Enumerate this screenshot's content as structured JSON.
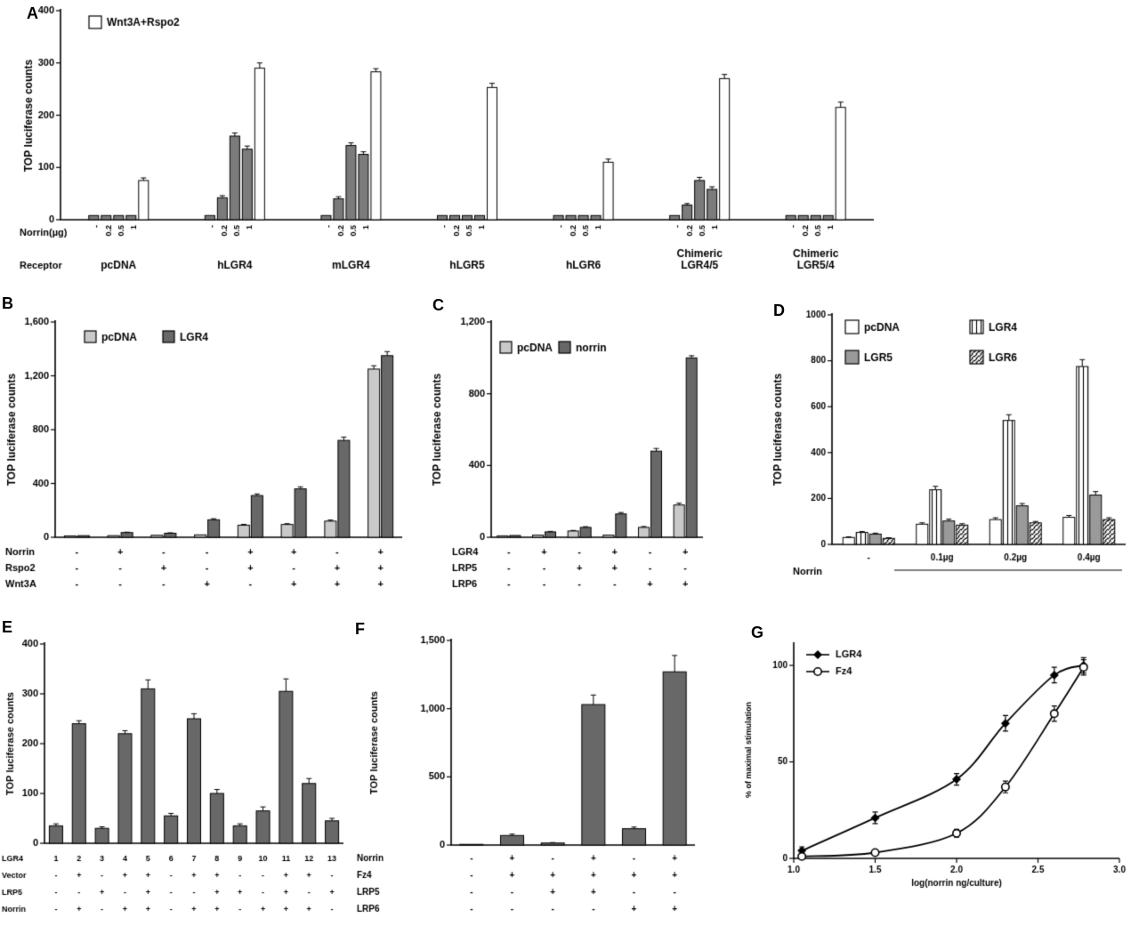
{
  "figure": {
    "background": "#ffffff",
    "panels": {
      "A": {
        "letter": "A"
      },
      "B": {
        "letter": "B"
      },
      "C": {
        "letter": "C"
      },
      "D": {
        "letter": "D"
      },
      "E": {
        "letter": "E"
      },
      "F": {
        "letter": "F"
      },
      "G": {
        "letter": "G"
      }
    }
  },
  "colors": {
    "bar_dark": "#686868",
    "bar_light": "#c9c9c9",
    "bar_mid": "#7b7b7b",
    "axis": "#000000"
  },
  "chart_data": [
    {
      "id": "A",
      "type": "bar",
      "ylabel": "TOP luciferase counts",
      "ylim": [
        0,
        400
      ],
      "yticks": [
        {
          "v": 0,
          "t": "0"
        },
        {
          "v": 100,
          "t": "100"
        },
        {
          "v": 200,
          "t": "200"
        },
        {
          "v": 300,
          "t": "300"
        },
        {
          "v": 400,
          "t": "400"
        }
      ],
      "legend": [
        {
          "label": "Wnt3A+Rspo2",
          "fill": "white"
        }
      ],
      "bar_fill_default": "#7b7b7b",
      "dose_labels": [
        "-",
        "0.2",
        "0.5",
        "1",
        ""
      ],
      "row_captions": [
        "Norrin(µg)",
        "Receptor"
      ],
      "groups": [
        {
          "label": "pcDNA",
          "values": [
            8,
            8,
            8,
            8,
            75
          ],
          "errors": [
            0,
            0,
            0,
            0,
            5
          ],
          "fills": [
            null,
            null,
            null,
            null,
            "white"
          ]
        },
        {
          "label": "hLGR4",
          "values": [
            8,
            42,
            160,
            135,
            290
          ],
          "errors": [
            0,
            4,
            6,
            6,
            10
          ],
          "fills": [
            null,
            null,
            null,
            null,
            "white"
          ]
        },
        {
          "label": "mLGR4",
          "values": [
            8,
            40,
            142,
            125,
            283
          ],
          "errors": [
            0,
            4,
            5,
            5,
            6
          ],
          "fills": [
            null,
            null,
            null,
            null,
            "white"
          ]
        },
        {
          "label": "hLGR5",
          "values": [
            8,
            8,
            8,
            8,
            253
          ],
          "errors": [
            0,
            0,
            0,
            0,
            8
          ],
          "fills": [
            null,
            null,
            null,
            null,
            "white"
          ]
        },
        {
          "label": "hLGR6",
          "values": [
            8,
            8,
            8,
            8,
            110
          ],
          "errors": [
            0,
            0,
            0,
            0,
            6
          ],
          "fills": [
            null,
            null,
            null,
            null,
            "white"
          ]
        },
        {
          "label": "Chimeric\nLGR4/5",
          "values": [
            8,
            28,
            75,
            58,
            270
          ],
          "errors": [
            0,
            3,
            6,
            5,
            8
          ],
          "fills": [
            null,
            null,
            null,
            null,
            "white"
          ]
        },
        {
          "label": "Chimeric\nLGR5/4",
          "values": [
            8,
            8,
            8,
            8,
            215
          ],
          "errors": [
            0,
            0,
            0,
            0,
            10
          ],
          "fills": [
            null,
            null,
            null,
            null,
            "white"
          ]
        }
      ]
    },
    {
      "id": "B",
      "type": "bar",
      "ylabel": "TOP luciferase counts",
      "ylim": [
        0,
        1600
      ],
      "yticks": [
        {
          "v": 0,
          "t": "0"
        },
        {
          "v": 400,
          "t": "400"
        },
        {
          "v": 800,
          "t": "800"
        },
        {
          "v": 1200,
          "t": "1,200"
        },
        {
          "v": 1600,
          "t": "1,600"
        }
      ],
      "legend": [
        {
          "label": "pcDNA",
          "fill": "#c9c9c9"
        },
        {
          "label": "LGR4",
          "fill": "#686868"
        }
      ],
      "series": [
        {
          "name": "pcDNA",
          "fill": "#c9c9c9",
          "values": [
            10,
            12,
            15,
            18,
            90,
            95,
            120,
            1250
          ],
          "errors": [
            0,
            0,
            0,
            0,
            6,
            6,
            8,
            25
          ]
        },
        {
          "name": "LGR4",
          "fill": "#686868",
          "values": [
            12,
            35,
            30,
            130,
            310,
            360,
            720,
            1350
          ],
          "errors": [
            0,
            3,
            3,
            8,
            12,
            15,
            25,
            30
          ]
        }
      ],
      "bottom_rows": [
        {
          "label": "Norrin",
          "cells": [
            "-",
            "+",
            "-",
            "-",
            "+",
            "+",
            "-",
            "+"
          ]
        },
        {
          "label": "Rspo2",
          "cells": [
            "-",
            "-",
            "+",
            "-",
            "+",
            "-",
            "+",
            "+"
          ]
        },
        {
          "label": "Wnt3A",
          "cells": [
            "-",
            "-",
            "-",
            "+",
            "-",
            "+",
            "+",
            "+"
          ]
        }
      ]
    },
    {
      "id": "C",
      "type": "bar",
      "ylabel": "TOP luciferase counts",
      "ylim": [
        0,
        1200
      ],
      "yticks": [
        {
          "v": 0,
          "t": "0"
        },
        {
          "v": 400,
          "t": "400"
        },
        {
          "v": 800,
          "t": "800"
        },
        {
          "v": 1200,
          "t": "1,200"
        }
      ],
      "legend": [
        {
          "label": "pcDNA",
          "fill": "#c9c9c9"
        },
        {
          "label": "norrin",
          "fill": "#686868"
        }
      ],
      "series": [
        {
          "name": "pcDNA",
          "fill": "#c9c9c9",
          "values": [
            8,
            12,
            35,
            12,
            55,
            180
          ],
          "errors": [
            0,
            0,
            3,
            0,
            5,
            10
          ]
        },
        {
          "name": "norrin",
          "fill": "#686868",
          "values": [
            10,
            30,
            55,
            130,
            480,
            1000
          ],
          "errors": [
            0,
            3,
            4,
            8,
            15,
            12
          ]
        }
      ],
      "bottom_rows": [
        {
          "label": "LGR4",
          "cells": [
            "-",
            "+",
            "-",
            "+",
            "-",
            "+"
          ]
        },
        {
          "label": "LRP5",
          "cells": [
            "-",
            "-",
            "+",
            "+",
            "-",
            "-"
          ]
        },
        {
          "label": "LRP6",
          "cells": [
            "-",
            "-",
            "-",
            "-",
            "+",
            "+"
          ]
        }
      ]
    },
    {
      "id": "D",
      "type": "bar",
      "ylabel": "TOP luciferase counts",
      "ylim": [
        0,
        1000
      ],
      "yticks": [
        {
          "v": 0,
          "t": "0"
        },
        {
          "v": 200,
          "t": "200"
        },
        {
          "v": 400,
          "t": "400"
        },
        {
          "v": 600,
          "t": "600"
        },
        {
          "v": 800,
          "t": "800"
        },
        {
          "v": 1000,
          "t": "1000"
        }
      ],
      "legend": [
        {
          "label": "pcDNA",
          "fill": "white"
        },
        {
          "label": "LGR4",
          "fill": "hatch-vert"
        },
        {
          "label": "LGR5",
          "fill": "#9a9a9a"
        },
        {
          "label": "LGR6",
          "fill": "hatch-diag"
        }
      ],
      "categories": [
        "-",
        "0.1µg",
        "0.2µg",
        "0.4µg"
      ],
      "xlabel": "Norrin",
      "series": [
        {
          "name": "pcDNA",
          "fill": "white",
          "values": [
            30,
            88,
            108,
            118
          ],
          "errors": [
            3,
            6,
            8,
            8
          ]
        },
        {
          "name": "LGR4",
          "fill": "hatch-vert",
          "values": [
            52,
            238,
            540,
            775
          ],
          "errors": [
            4,
            15,
            25,
            30
          ]
        },
        {
          "name": "LGR5",
          "fill": "#9a9a9a",
          "values": [
            45,
            102,
            168,
            215
          ],
          "errors": [
            4,
            8,
            10,
            15
          ]
        },
        {
          "name": "LGR6",
          "fill": "hatch-diag",
          "values": [
            26,
            84,
            94,
            108
          ],
          "errors": [
            3,
            6,
            6,
            8
          ]
        }
      ]
    },
    {
      "id": "E",
      "type": "bar",
      "ylabel": "TOP luciferase counts",
      "ylim": [
        0,
        400
      ],
      "yticks": [
        {
          "v": 0,
          "t": "0"
        },
        {
          "v": 100,
          "t": "100"
        },
        {
          "v": 200,
          "t": "200"
        },
        {
          "v": 300,
          "t": "300"
        },
        {
          "v": 400,
          "t": "400"
        }
      ],
      "bar_fill_default": "#686868",
      "values": [
        35,
        240,
        30,
        220,
        310,
        55,
        250,
        100,
        35,
        65,
        305,
        120,
        45
      ],
      "errors": [
        4,
        6,
        3,
        6,
        18,
        5,
        10,
        8,
        4,
        8,
        25,
        10,
        5
      ],
      "bottom_rows": [
        {
          "label": "LGR4",
          "cells": [
            "1",
            "2",
            "3",
            "4",
            "5",
            "6",
            "7",
            "8",
            "9",
            "10",
            "11",
            "12",
            "13"
          ]
        },
        {
          "label": "Vector",
          "cells": [
            "-",
            "+",
            "-",
            "+",
            "+",
            "-",
            "+",
            "+",
            "-",
            "-",
            "+",
            "+",
            "-"
          ]
        },
        {
          "label": "LRP5",
          "cells": [
            "-",
            "-",
            "+",
            "-",
            "+",
            "-",
            "-",
            "+",
            "+",
            "-",
            "+",
            "-",
            "+"
          ]
        },
        {
          "label": "Norrin",
          "cells": [
            "-",
            "+",
            "-",
            "+",
            "+",
            "-",
            "+",
            "+",
            "-",
            "+",
            "+",
            "+",
            "-"
          ]
        }
      ]
    },
    {
      "id": "F",
      "type": "bar",
      "ylabel": "TOP luciferase counts",
      "ylim": [
        0,
        1500
      ],
      "yticks": [
        {
          "v": 0,
          "t": "0"
        },
        {
          "v": 500,
          "t": "500"
        },
        {
          "v": 1000,
          "t": "1,000"
        },
        {
          "v": 1500,
          "t": "1,500"
        }
      ],
      "bar_fill_default": "#686868",
      "values": [
        5,
        70,
        15,
        1030,
        120,
        1270
      ],
      "errors": [
        0,
        10,
        3,
        70,
        12,
        120
      ],
      "bottom_rows": [
        {
          "label": "Norrin",
          "cells": [
            "-",
            "+",
            "-",
            "+",
            "-",
            "+"
          ]
        },
        {
          "label": "Fz4",
          "cells": [
            "-",
            "+",
            "+",
            "+",
            "+",
            "+"
          ]
        },
        {
          "label": "LRP5",
          "cells": [
            "-",
            "-",
            "+",
            "+",
            "-",
            "-"
          ]
        },
        {
          "label": "LRP6",
          "cells": [
            "-",
            "-",
            "-",
            "-",
            "+",
            "+"
          ]
        }
      ]
    },
    {
      "id": "G",
      "type": "scatter",
      "ylabel": "% of maximal stimulation",
      "xlabel": "log(norrin ng/culture)",
      "xlim": [
        1.0,
        3.0
      ],
      "ylim": [
        0,
        112
      ],
      "xticks": [
        {
          "v": 1.0,
          "t": "1.0"
        },
        {
          "v": 1.5,
          "t": "1.5"
        },
        {
          "v": 2.0,
          "t": "2.0"
        },
        {
          "v": 2.5,
          "t": "2.5"
        },
        {
          "v": 3.0,
          "t": "3.0"
        }
      ],
      "yticks": [
        {
          "v": 0,
          "t": "0"
        },
        {
          "v": 50,
          "t": "50"
        },
        {
          "v": 100,
          "t": "100"
        }
      ],
      "series": [
        {
          "name": "LGR4",
          "marker": "diamond",
          "points": [
            [
              1.05,
              4,
              2
            ],
            [
              1.5,
              21,
              3
            ],
            [
              2.0,
              41,
              3
            ],
            [
              2.3,
              70,
              4
            ],
            [
              2.6,
              95,
              4
            ],
            [
              2.78,
              100,
              4
            ]
          ]
        },
        {
          "name": "Fz4",
          "marker": "circle",
          "points": [
            [
              1.05,
              1,
              0
            ],
            [
              1.5,
              3,
              0
            ],
            [
              2.0,
              13,
              2
            ],
            [
              2.3,
              37,
              3
            ],
            [
              2.6,
              75,
              4
            ],
            [
              2.78,
              99,
              4
            ]
          ]
        }
      ]
    }
  ]
}
